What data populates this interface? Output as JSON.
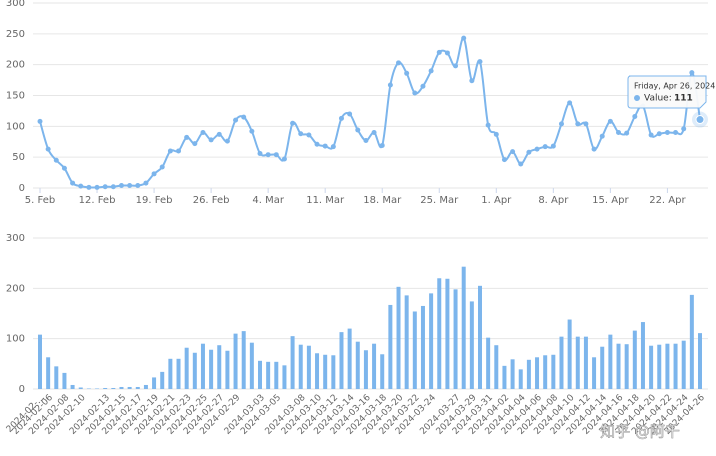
{
  "chart_data": [
    {
      "type": "line",
      "color": "#7cb5ec",
      "grid": true,
      "x": [
        "2024-02-05",
        "2024-02-06",
        "2024-02-07",
        "2024-02-08",
        "2024-02-09",
        "2024-02-10",
        "2024-02-11",
        "2024-02-12",
        "2024-02-13",
        "2024-02-14",
        "2024-02-15",
        "2024-02-16",
        "2024-02-17",
        "2024-02-18",
        "2024-02-19",
        "2024-02-20",
        "2024-02-21",
        "2024-02-22",
        "2024-02-23",
        "2024-02-24",
        "2024-02-25",
        "2024-02-26",
        "2024-02-27",
        "2024-02-28",
        "2024-02-29",
        "2024-03-01",
        "2024-03-02",
        "2024-03-03",
        "2024-03-04",
        "2024-03-05",
        "2024-03-06",
        "2024-03-07",
        "2024-03-08",
        "2024-03-09",
        "2024-03-10",
        "2024-03-11",
        "2024-03-12",
        "2024-03-13",
        "2024-03-14",
        "2024-03-15",
        "2024-03-16",
        "2024-03-17",
        "2024-03-18",
        "2024-03-19",
        "2024-03-20",
        "2024-03-21",
        "2024-03-22",
        "2024-03-23",
        "2024-03-24",
        "2024-03-25",
        "2024-03-26",
        "2024-03-27",
        "2024-03-28",
        "2024-03-29",
        "2024-03-30",
        "2024-03-31",
        "2024-04-01",
        "2024-04-02",
        "2024-04-03",
        "2024-04-04",
        "2024-04-05",
        "2024-04-06",
        "2024-04-07",
        "2024-04-08",
        "2024-04-09",
        "2024-04-10",
        "2024-04-11",
        "2024-04-12",
        "2024-04-13",
        "2024-04-14",
        "2024-04-15",
        "2024-04-16",
        "2024-04-17",
        "2024-04-18",
        "2024-04-19",
        "2024-04-20",
        "2024-04-21",
        "2024-04-22",
        "2024-04-23",
        "2024-04-24",
        "2024-04-25",
        "2024-04-26"
      ],
      "values": [
        108,
        63,
        45,
        32,
        8,
        3,
        1,
        1,
        2,
        2,
        4,
        4,
        4,
        8,
        23,
        34,
        60,
        60,
        82,
        72,
        90,
        78,
        87,
        76,
        110,
        115,
        92,
        56,
        54,
        54,
        47,
        105,
        88,
        86,
        71,
        68,
        67,
        113,
        120,
        94,
        77,
        90,
        69,
        167,
        203,
        186,
        154,
        165,
        190,
        220,
        219,
        198,
        243,
        174,
        205,
        102,
        87,
        46,
        59,
        39,
        58,
        63,
        67,
        68,
        104,
        138,
        104,
        104,
        63,
        84,
        108,
        90,
        89,
        116,
        133,
        86,
        88,
        90,
        90,
        96,
        187,
        111
      ],
      "xticks": [
        {
          "value": "2024-02-05",
          "label": "5. Feb"
        },
        {
          "value": "2024-02-12",
          "label": "12. Feb"
        },
        {
          "value": "2024-02-19",
          "label": "19. Feb"
        },
        {
          "value": "2024-02-26",
          "label": "26. Feb"
        },
        {
          "value": "2024-03-04",
          "label": "4. Mar"
        },
        {
          "value": "2024-03-11",
          "label": "11. Mar"
        },
        {
          "value": "2024-03-18",
          "label": "18. Mar"
        },
        {
          "value": "2024-03-25",
          "label": "25. Mar"
        },
        {
          "value": "2024-04-01",
          "label": "1. Apr"
        },
        {
          "value": "2024-04-08",
          "label": "8. Apr"
        },
        {
          "value": "2024-04-15",
          "label": "15. Apr"
        },
        {
          "value": "2024-04-22",
          "label": "22. Apr"
        }
      ],
      "ylim": [
        0,
        300
      ],
      "yticks": [
        0,
        50,
        100,
        150,
        200,
        250,
        300
      ],
      "tooltip": {
        "title": "Friday, Apr 26, 2024",
        "label": "Value:",
        "value": 111
      }
    },
    {
      "type": "bar",
      "color": "#7cb5ec",
      "grid": true,
      "categories": [
        "2024-02-...",
        "2024-02-06",
        null,
        "2024-02-08",
        null,
        "2024-02-10",
        null,
        null,
        "2024-02-13",
        null,
        "2024-02-15",
        null,
        "2024-02-17",
        null,
        "2024-02-19",
        null,
        "2024-02-21",
        null,
        "2024-02-23",
        null,
        "2024-02-25",
        null,
        "2024-02-27",
        null,
        "2024-02-29",
        null,
        null,
        "2024-03-03",
        null,
        "2024-03-05",
        null,
        null,
        "2024-03-08",
        null,
        "2024-03-10",
        null,
        "2024-03-12",
        null,
        "2024-03-14",
        null,
        "2024-03-16",
        null,
        "2024-03-18",
        null,
        "2024-03-20",
        null,
        "2024-03-22",
        null,
        "2024-03-24",
        null,
        null,
        "2024-03-27",
        null,
        "2024-03-29",
        null,
        "2024-03-31",
        null,
        "2024-04-02",
        null,
        "2024-04-04",
        null,
        "2024-04-06",
        null,
        "2024-04-08",
        null,
        "2024-04-10",
        null,
        "2024-04-12",
        null,
        "2024-04-14",
        null,
        "2024-04-16",
        null,
        "2024-04-18",
        null,
        "2024-04-20",
        null,
        "2024-04-22",
        null,
        "2024-04-24",
        null,
        "2024-04-26"
      ],
      "values": [
        108,
        63,
        45,
        32,
        8,
        3,
        1,
        1,
        2,
        2,
        4,
        4,
        4,
        8,
        23,
        34,
        60,
        60,
        82,
        72,
        90,
        78,
        87,
        76,
        110,
        115,
        92,
        56,
        54,
        54,
        47,
        105,
        88,
        86,
        71,
        68,
        67,
        113,
        120,
        94,
        77,
        90,
        69,
        167,
        203,
        186,
        154,
        165,
        190,
        220,
        219,
        198,
        243,
        174,
        205,
        102,
        87,
        46,
        59,
        39,
        58,
        63,
        67,
        68,
        104,
        138,
        104,
        104,
        63,
        84,
        108,
        90,
        89,
        116,
        133,
        86,
        88,
        90,
        90,
        96,
        187,
        111
      ],
      "ylim": [
        0,
        300
      ],
      "yticks": [
        0,
        100,
        200,
        300
      ]
    }
  ],
  "watermark": "知乎 @阿千"
}
